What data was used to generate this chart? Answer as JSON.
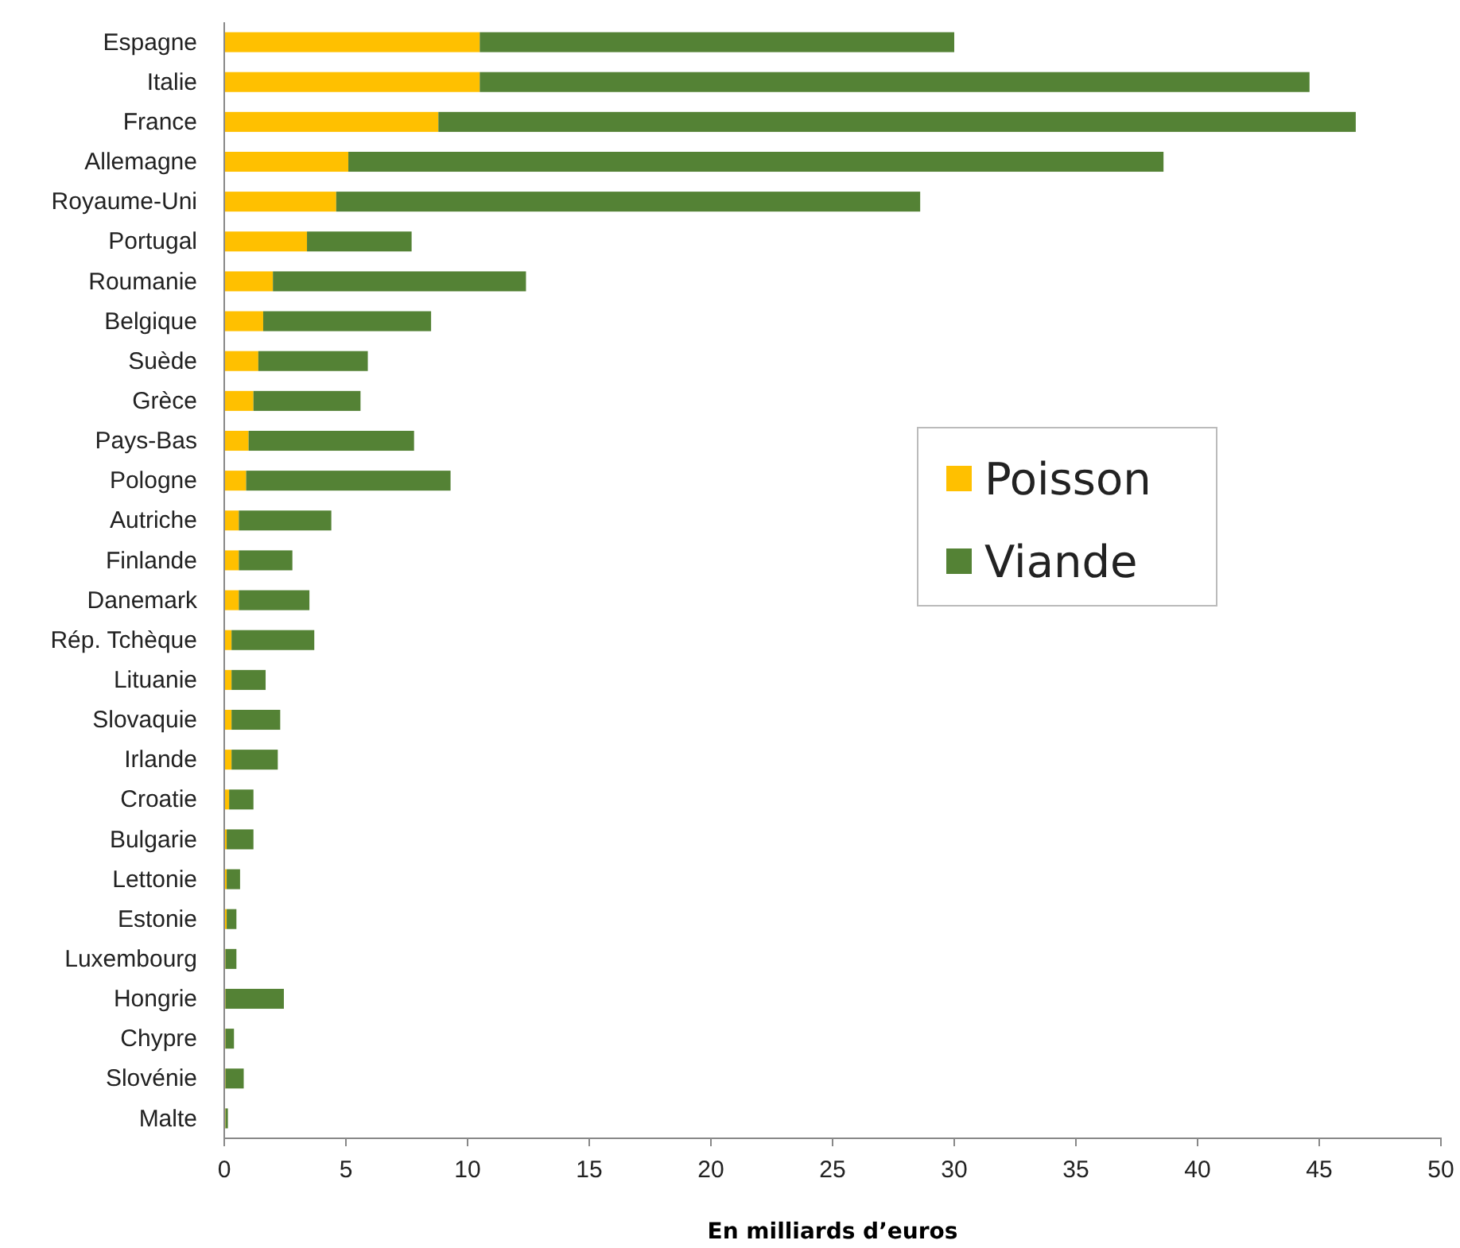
{
  "chart_data": {
    "type": "bar",
    "orientation": "horizontal",
    "stacked": true,
    "xlabel": "En milliards d’euros",
    "categories": [
      "Espagne",
      "Italie",
      "France",
      "Allemagne",
      "Royaume-Uni",
      "Portugal",
      "Roumanie",
      "Belgique",
      "Suède",
      "Grèce",
      "Pays-Bas",
      "Pologne",
      "Autriche",
      "Finlande",
      "Danemark",
      "Rép. Tchèque",
      "Lituanie",
      "Slovaquie",
      "Irlande",
      "Croatie",
      "Bulgarie",
      "Lettonie",
      "Estonie",
      "Luxembourg",
      "Hongrie",
      "Chypre",
      "Slovénie",
      "Malte"
    ],
    "series": [
      {
        "name": "Poisson",
        "color": "#ffc000",
        "values": [
          10.5,
          10.5,
          8.8,
          5.1,
          4.6,
          3.4,
          2.0,
          1.6,
          1.4,
          1.2,
          1.0,
          0.9,
          0.6,
          0.6,
          0.6,
          0.3,
          0.3,
          0.3,
          0.3,
          0.2,
          0.1,
          0.1,
          0.1,
          0.05,
          0.05,
          0.05,
          0.05,
          0.05
        ]
      },
      {
        "name": "Viande",
        "color": "#548235",
        "values": [
          19.5,
          34.1,
          37.7,
          33.5,
          24.0,
          4.3,
          10.4,
          6.9,
          4.5,
          4.4,
          6.8,
          8.4,
          3.8,
          2.2,
          2.9,
          3.4,
          1.4,
          2.0,
          1.9,
          1.0,
          1.1,
          0.55,
          0.4,
          0.45,
          2.4,
          0.35,
          0.75,
          0.1
        ]
      }
    ],
    "xlim": [
      0,
      50
    ],
    "xticks": [
      0,
      5,
      10,
      15,
      20,
      25,
      30,
      35,
      40,
      45,
      50
    ],
    "grid": false,
    "legend": "right"
  }
}
